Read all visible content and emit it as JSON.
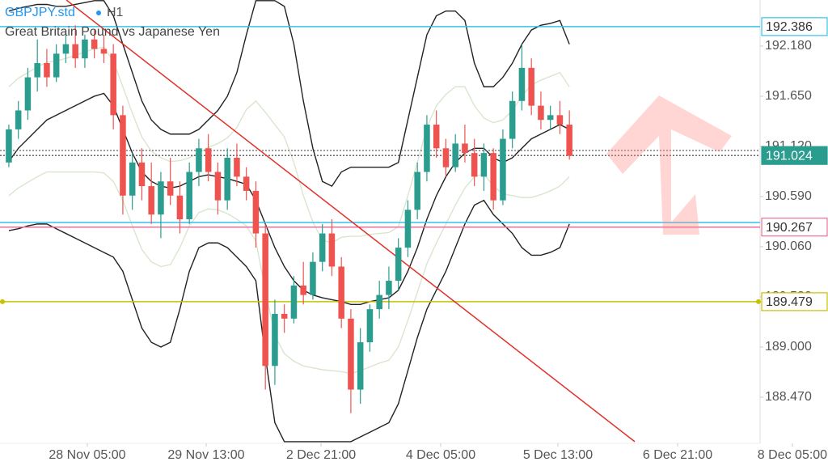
{
  "chart_data": {
    "type": "candlestick",
    "title": "GBPJPY.std",
    "timeframe": "H1",
    "subtitle": "Great Britain Pound vs Japanese Yen",
    "up_color": "#2a9d8f",
    "down_color": "#ef5350",
    "open": [
      190.95,
      191.3,
      191.5,
      191.85,
      192.0,
      191.85,
      192.1,
      192.2,
      192.05,
      192.25,
      192.15,
      192.1,
      191.45,
      190.6,
      190.95,
      190.7,
      190.4,
      190.75,
      190.6,
      190.35,
      190.85,
      191.1,
      190.85,
      190.55,
      191.0,
      190.8,
      190.65,
      190.2,
      188.8,
      189.35,
      189.3,
      189.65,
      189.55,
      189.9,
      190.2,
      189.85,
      189.3,
      188.55,
      189.05,
      189.4,
      189.55,
      189.7,
      190.05,
      190.45,
      190.85,
      191.35,
      191.1,
      190.9,
      191.15,
      191.05,
      190.8,
      191.05,
      190.55,
      191.2,
      191.6,
      191.95,
      191.55,
      191.4,
      191.45,
      191.35
    ],
    "high": [
      191.35,
      191.6,
      191.95,
      192.25,
      192.15,
      192.2,
      192.35,
      192.4,
      192.3,
      192.35,
      192.3,
      192.2,
      191.55,
      191.05,
      191.1,
      190.95,
      190.85,
      191.0,
      190.75,
      190.95,
      191.2,
      191.25,
      190.95,
      191.1,
      191.15,
      190.9,
      190.75,
      190.3,
      189.5,
      189.45,
      189.75,
      189.9,
      190.0,
      190.3,
      190.35,
      189.95,
      189.4,
      189.2,
      189.45,
      189.7,
      189.85,
      190.15,
      190.55,
      190.95,
      191.45,
      191.5,
      191.2,
      191.25,
      191.35,
      191.2,
      191.15,
      191.1,
      191.3,
      191.7,
      192.2,
      192.05,
      191.7,
      191.55,
      191.6,
      191.5
    ],
    "low": [
      190.9,
      191.2,
      191.4,
      191.7,
      191.75,
      191.8,
      192.0,
      191.95,
      191.95,
      192.05,
      192.0,
      191.3,
      190.4,
      190.45,
      190.55,
      190.3,
      190.15,
      190.5,
      190.2,
      190.3,
      190.7,
      190.75,
      190.4,
      190.45,
      190.7,
      190.55,
      190.05,
      188.55,
      188.6,
      189.15,
      189.25,
      189.45,
      189.5,
      189.8,
      189.75,
      189.2,
      188.3,
      188.4,
      188.95,
      189.3,
      189.4,
      189.6,
      189.95,
      190.35,
      190.75,
      191.0,
      190.8,
      190.85,
      190.95,
      190.7,
      190.65,
      190.45,
      190.5,
      191.1,
      191.5,
      191.45,
      191.3,
      191.3,
      191.25,
      190.98
    ],
    "close": [
      191.3,
      191.5,
      191.85,
      192.0,
      191.85,
      192.1,
      192.2,
      192.05,
      192.25,
      192.15,
      192.1,
      191.45,
      190.6,
      190.95,
      190.7,
      190.4,
      190.75,
      190.6,
      190.35,
      190.85,
      191.1,
      190.85,
      190.55,
      191.0,
      190.8,
      190.65,
      190.2,
      188.8,
      189.35,
      189.3,
      189.65,
      189.55,
      189.9,
      190.2,
      189.85,
      189.3,
      188.55,
      189.05,
      189.4,
      189.55,
      189.7,
      190.05,
      190.45,
      190.85,
      191.35,
      191.1,
      190.9,
      191.15,
      191.05,
      190.8,
      191.05,
      190.55,
      191.2,
      191.6,
      191.95,
      191.55,
      191.4,
      191.45,
      191.35,
      191.02
    ],
    "lines": [
      {
        "color": "#222222",
        "values": [
          192.55,
          192.58,
          192.6,
          192.62,
          192.62,
          192.6,
          192.6,
          192.62,
          192.64,
          192.66,
          192.66,
          192.5,
          192.2,
          191.9,
          191.6,
          191.4,
          191.3,
          191.25,
          191.25,
          191.25,
          191.3,
          191.4,
          191.5,
          191.65,
          191.9,
          192.3,
          192.66,
          192.66,
          192.66,
          192.6,
          192.2,
          191.6,
          191.1,
          190.75,
          190.7,
          190.85,
          190.9,
          190.9,
          190.9,
          190.9,
          190.9,
          190.95,
          191.4,
          191.85,
          192.3,
          192.5,
          192.55,
          192.55,
          192.45,
          192.0,
          191.75,
          191.75,
          191.85,
          192.0,
          192.2,
          192.35,
          192.4,
          192.42,
          192.45,
          192.2
        ]
      },
      {
        "color": "#222222",
        "values": [
          190.96,
          191.1,
          191.2,
          191.3,
          191.4,
          191.45,
          191.5,
          191.55,
          191.6,
          191.65,
          191.68,
          191.55,
          191.3,
          191.05,
          190.85,
          190.75,
          190.7,
          190.68,
          190.7,
          190.75,
          190.8,
          190.82,
          190.8,
          190.78,
          190.75,
          190.72,
          190.55,
          190.3,
          190.05,
          189.85,
          189.7,
          189.6,
          189.55,
          189.52,
          189.5,
          189.48,
          189.45,
          189.45,
          189.48,
          189.5,
          189.52,
          189.6,
          189.8,
          190.05,
          190.35,
          190.6,
          190.8,
          190.95,
          191.05,
          191.1,
          191.1,
          191.0,
          190.95,
          191.0,
          191.1,
          191.2,
          191.25,
          191.3,
          191.35,
          191.3
        ]
      },
      {
        "color": "#222222",
        "values": [
          190.23,
          190.25,
          190.28,
          190.3,
          190.3,
          190.25,
          190.2,
          190.15,
          190.1,
          190.05,
          190.0,
          189.95,
          189.8,
          189.5,
          189.2,
          189.05,
          189.0,
          189.05,
          189.4,
          189.8,
          190.05,
          190.1,
          190.1,
          190.05,
          189.95,
          189.85,
          189.7,
          188.9,
          188.2,
          188.0,
          188.0,
          188.0,
          188.0,
          188.0,
          188.0,
          188.0,
          188.0,
          188.05,
          188.1,
          188.15,
          188.2,
          188.4,
          188.75,
          189.1,
          189.4,
          189.6,
          189.8,
          190.05,
          190.3,
          190.5,
          190.55,
          190.4,
          190.3,
          190.2,
          190.05,
          189.97,
          189.97,
          190.0,
          190.05,
          190.3
        ]
      },
      {
        "color": "#d9e6cf",
        "values": [
          191.75,
          191.84,
          191.9,
          191.96,
          192.01,
          192.02,
          192.05,
          192.08,
          192.12,
          192.15,
          192.17,
          192.02,
          191.75,
          191.47,
          191.22,
          191.07,
          191.0,
          190.96,
          190.97,
          191.0,
          191.05,
          191.11,
          191.15,
          191.21,
          191.32,
          191.51,
          191.6,
          191.48,
          191.35,
          191.22,
          190.95,
          190.6,
          190.32,
          190.13,
          190.1,
          190.16,
          190.17,
          190.17,
          190.19,
          190.2,
          190.21,
          190.27,
          190.6,
          190.95,
          191.32,
          191.55,
          191.67,
          191.75,
          191.75,
          191.55,
          191.42,
          191.37,
          191.4,
          191.5,
          191.65,
          191.77,
          191.82,
          191.86,
          191.9,
          191.75
        ]
      },
      {
        "color": "#d9e6cf",
        "values": [
          190.6,
          190.68,
          190.74,
          190.8,
          190.85,
          190.85,
          190.85,
          190.85,
          190.85,
          190.85,
          190.84,
          190.75,
          190.55,
          190.28,
          190.03,
          189.9,
          189.85,
          189.87,
          190.05,
          190.28,
          190.42,
          190.46,
          190.45,
          190.41,
          190.35,
          190.28,
          190.12,
          189.6,
          189.12,
          188.93,
          188.85,
          188.8,
          188.78,
          188.76,
          188.75,
          188.74,
          188.72,
          188.75,
          188.79,
          188.83,
          188.86,
          189.0,
          189.28,
          189.58,
          189.88,
          190.1,
          190.3,
          190.5,
          190.68,
          190.8,
          190.83,
          190.7,
          190.62,
          190.6,
          190.58,
          190.58,
          190.61,
          190.65,
          190.7,
          190.8
        ]
      }
    ],
    "trendline": {
      "x": [
        6.05,
        65.88
      ],
      "y": [
        192.667,
        188.0
      ],
      "color": "#e0302a"
    },
    "levels": [
      {
        "price": 192.386,
        "color": "#34c3e8",
        "style": "solid",
        "labeled": true,
        "filled": false
      },
      {
        "price": 191.077,
        "color": "#666666",
        "style": "dotted",
        "labeled": false,
        "filled": false
      },
      {
        "price": 191.024,
        "color": "#555555",
        "style": "dotted",
        "labeled": true,
        "filled": true,
        "fill": "#2a9d8f"
      },
      {
        "price": 190.316,
        "color": "#34c3e8",
        "style": "solid",
        "labeled": false,
        "filled": false
      },
      {
        "price": 190.267,
        "color": "#e8709a",
        "style": "solid",
        "labeled": true,
        "filled": false
      },
      {
        "price": 189.479,
        "color": "#c8c000",
        "style": "solid",
        "labeled": true,
        "filled": false
      }
    ],
    "xlim": [
      -0.93,
      79.07
    ],
    "ylim": [
      187.982,
      192.667
    ],
    "xticks": [
      {
        "value": 8.26,
        "label": "28 Nov 05:00"
      },
      {
        "value": 20.77,
        "label": "29 Nov 13:00"
      },
      {
        "value": 32.86,
        "label": "2 Dec 21:00"
      },
      {
        "value": 45.45,
        "label": "4 Dec 05:00"
      },
      {
        "value": 57.79,
        "label": "5 Dec 13:00"
      },
      {
        "value": 70.39,
        "label": "6 Dec 21:00"
      },
      {
        "value": 82.47,
        "label": "8 Dec 05:00"
      }
    ],
    "yticks": [
      {
        "value": 192.18,
        "label": "192.180"
      },
      {
        "value": 191.65,
        "label": "191.650"
      },
      {
        "value": 191.12,
        "label": "191.120"
      },
      {
        "value": 190.59,
        "label": "190.590"
      },
      {
        "value": 190.06,
        "label": "190.060"
      },
      {
        "value": 189.53,
        "label": "189.530"
      },
      {
        "value": 189.0,
        "label": "189.000"
      },
      {
        "value": 188.47,
        "label": "188.470"
      }
    ]
  }
}
